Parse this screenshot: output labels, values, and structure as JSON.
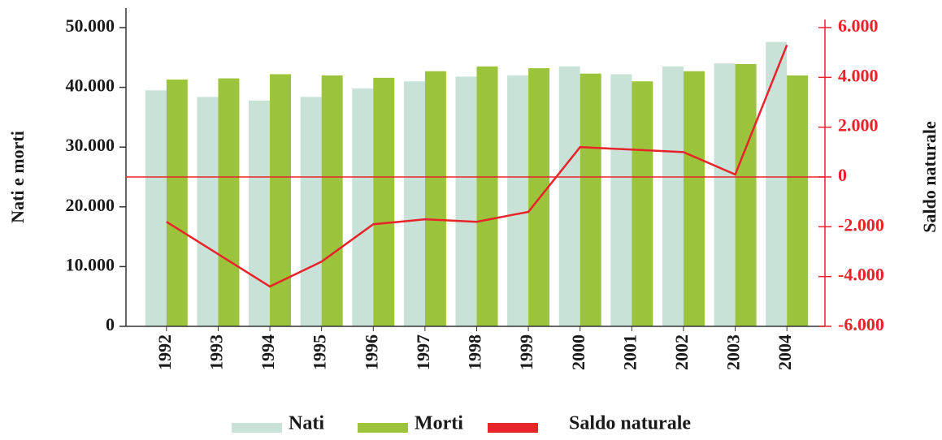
{
  "chart_data": {
    "type": "bar_line",
    "categories": [
      "1992",
      "1993",
      "1994",
      "1995",
      "1996",
      "1997",
      "1998",
      "1999",
      "2000",
      "2001",
      "2002",
      "2003",
      "2004"
    ],
    "series": [
      {
        "name": "Nati",
        "color": "#c8e2d8",
        "values": [
          39500,
          38400,
          37800,
          38400,
          39800,
          41000,
          41800,
          42000,
          43500,
          42200,
          43500,
          44000,
          47600
        ]
      },
      {
        "name": "Morti",
        "color": "#9bc43c",
        "values": [
          41300,
          41500,
          42200,
          42000,
          41600,
          42700,
          43500,
          43200,
          42300,
          41000,
          42700,
          43900,
          42000
        ]
      },
      {
        "name": "Saldo naturale",
        "color": "#e8232a",
        "axis": "y2",
        "values": [
          -1800,
          -3100,
          -4400,
          -3400,
          -1900,
          -1700,
          -1800,
          -1400,
          1200,
          1100,
          1000,
          100,
          5300
        ]
      }
    ],
    "ylabel": "Nati e morti",
    "y2label": "Saldo naturale",
    "ylim": [
      0,
      50000
    ],
    "yticks": [
      0,
      {
        "value": 10000,
        "label": "10.000"
      },
      {
        "value": 20000,
        "label": "20.000"
      },
      {
        "value": 30000,
        "label": "30.000"
      },
      {
        "value": 40000,
        "label": "40.000"
      },
      {
        "value": 50000,
        "label": "50.000"
      }
    ],
    "y2lim": [
      -6000,
      6000
    ],
    "y2ticks": [
      {
        "value": -6000,
        "label": "-6.000"
      },
      {
        "value": -4000,
        "label": "-4.000"
      },
      {
        "value": -2000,
        "label": "-2.000"
      },
      0,
      {
        "value": 2000,
        "label": "2.000"
      },
      {
        "value": 4000,
        "label": "4.000"
      },
      {
        "value": 6000,
        "label": "6.000"
      }
    ],
    "legend": "bottom"
  }
}
